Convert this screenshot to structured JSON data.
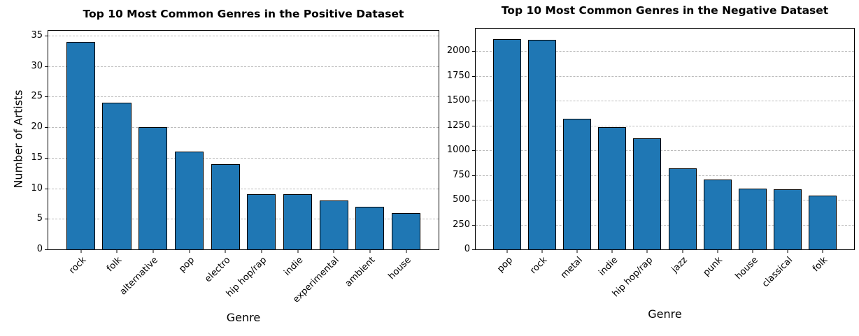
{
  "style": {
    "background": "#ffffff",
    "bar_fill": "#1f77b4",
    "bar_edge": "#000000",
    "grid_color": "#bbbbbb",
    "axis_color": "#000000"
  },
  "chart_data": [
    {
      "type": "bar",
      "title": "Top 10 Most Common Genres in the Positive Dataset",
      "xlabel": "Genre",
      "ylabel": "Number of Artists",
      "categories": [
        "rock",
        "folk",
        "alternative",
        "pop",
        "electro",
        "hip hop/rap",
        "indie",
        "experimental",
        "ambient",
        "house"
      ],
      "values": [
        34,
        24,
        20,
        16,
        14,
        9,
        9,
        8,
        7,
        6
      ],
      "yticks": [
        0,
        5,
        10,
        15,
        20,
        25,
        30,
        35
      ],
      "ylim": [
        0,
        35.8
      ],
      "bar_rel_width": 0.8,
      "xtick_rotation": 45,
      "grid": "horizontal-dashed",
      "legend": null
    },
    {
      "type": "bar",
      "title": "Top 10 Most Common Genres in the Negative Dataset",
      "xlabel": "Genre",
      "ylabel": "",
      "categories": [
        "pop",
        "rock",
        "metal",
        "indie",
        "hip hop/rap",
        "jazz",
        "punk",
        "house",
        "classical",
        "folk"
      ],
      "values": [
        2120,
        2110,
        1320,
        1230,
        1120,
        820,
        705,
        610,
        605,
        540
      ],
      "yticks": [
        0,
        250,
        500,
        750,
        1000,
        1250,
        1500,
        1750,
        2000
      ],
      "ylim": [
        0,
        2226
      ],
      "bar_rel_width": 0.8,
      "xtick_rotation": 45,
      "grid": "horizontal-dashed",
      "legend": null
    }
  ]
}
